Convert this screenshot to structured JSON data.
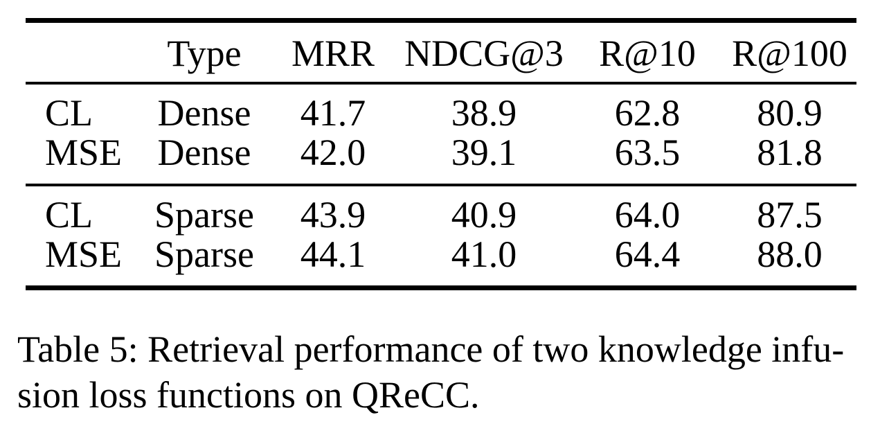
{
  "table": {
    "columns": [
      "",
      "Type",
      "MRR",
      "NDCG@3",
      "R@10",
      "R@100"
    ],
    "sections": [
      {
        "name": "dense",
        "rows": [
          {
            "cells": [
              "CL",
              "Dense",
              "41.7",
              "38.9",
              "62.8",
              "80.9"
            ]
          },
          {
            "cells": [
              "MSE",
              "Dense",
              "42.0",
              "39.1",
              "63.5",
              "81.8"
            ]
          }
        ]
      },
      {
        "name": "sparse",
        "rows": [
          {
            "cells": [
              "CL",
              "Sparse",
              "43.9",
              "40.9",
              "64.0",
              "87.5"
            ]
          },
          {
            "cells": [
              "MSE",
              "Sparse",
              "44.1",
              "41.0",
              "64.4",
              "88.0"
            ]
          }
        ]
      }
    ]
  },
  "caption": {
    "line1": "Table 5: Retrieval performance of two knowledge infu-",
    "line2": "sion loss functions on QReCC."
  },
  "colors": {
    "background": "#ffffff",
    "text": "#000000",
    "rule": "#000000"
  }
}
